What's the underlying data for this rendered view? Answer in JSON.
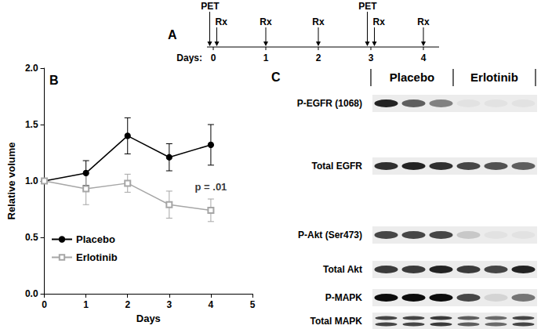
{
  "chart_data": {
    "type": "line",
    "title": "B",
    "x": [
      0,
      1,
      2,
      3,
      4
    ],
    "xlim": [
      0,
      5
    ],
    "xticks": [
      0,
      1,
      2,
      3,
      4,
      5
    ],
    "ylim": [
      0,
      2
    ],
    "yticks": [
      {
        "value": 0,
        "label": "0.0"
      },
      {
        "value": 0.5,
        "label": "0.5"
      },
      {
        "value": 1,
        "label": "1.0"
      },
      {
        "value": 1.5,
        "label": "1.5"
      },
      {
        "value": 2,
        "label": "2.0"
      }
    ],
    "x_label": "Days",
    "y_label": "Relative volume",
    "legend": "bottom-left",
    "grid": false,
    "series": [
      {
        "name": "Placebo",
        "color": "#000000",
        "marker": "circle",
        "values": [
          1.0,
          1.07,
          1.4,
          1.21,
          1.32
        ],
        "errors": [
          0,
          0.11,
          0.16,
          0.12,
          0.18
        ]
      },
      {
        "name": "Erlotinib",
        "color": "#a6a6a6",
        "marker": "open-square",
        "values": [
          1.0,
          0.93,
          0.98,
          0.79,
          0.74
        ],
        "errors": [
          0,
          0.14,
          0.08,
          0.12,
          0.1
        ]
      }
    ],
    "annotations": [
      {
        "text": "p = .01",
        "x": 4,
        "y": 0.95
      }
    ]
  },
  "timeline": {
    "label": "A",
    "axis_label": "Days:",
    "days": [
      0,
      1,
      2,
      3,
      4
    ],
    "events": [
      {
        "label": "PET",
        "day": 0
      },
      {
        "label": "Rx",
        "day": 0
      },
      {
        "label": "Rx",
        "day": 1
      },
      {
        "label": "Rx",
        "day": 2
      },
      {
        "label": "PET",
        "day": 3
      },
      {
        "label": "Rx",
        "day": 3
      },
      {
        "label": "Rx",
        "day": 4
      }
    ]
  },
  "blot": {
    "label": "C",
    "groups": [
      {
        "name": "Placebo",
        "lanes": 3
      },
      {
        "name": "Erlotinib",
        "lanes": 3
      }
    ],
    "rows": [
      {
        "label": "P-EGFR (1068)",
        "bands": [
          0.85,
          0.6,
          0.45,
          0.04,
          0.04,
          0.04
        ]
      },
      {
        "label": "Total EGFR",
        "bands": [
          0.8,
          0.85,
          0.8,
          0.7,
          0.65,
          0.6
        ]
      },
      {
        "label": "P-Akt (Ser473)",
        "bands": [
          0.7,
          0.7,
          0.7,
          0.15,
          0.04,
          0.04
        ]
      },
      {
        "label": "Total Akt",
        "bands": [
          0.75,
          0.75,
          0.85,
          0.75,
          0.7,
          0.85
        ]
      },
      {
        "label": "P-MAPK",
        "bands": [
          0.95,
          0.95,
          0.95,
          0.7,
          0.1,
          0.5
        ]
      },
      {
        "label": "Total MAPK",
        "bands": [
          0.7,
          0.7,
          0.75,
          0.6,
          0.55,
          0.7
        ],
        "doublet": true
      }
    ]
  }
}
